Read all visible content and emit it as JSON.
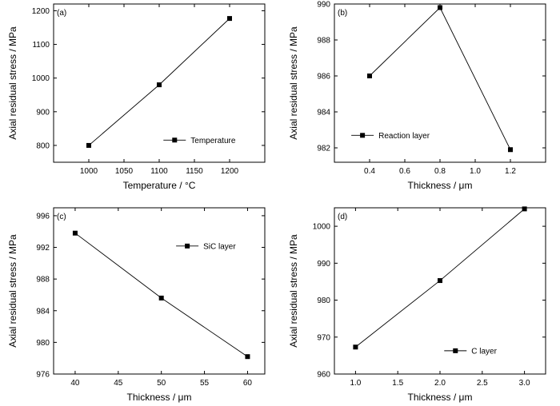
{
  "chart_data": [
    {
      "type": "line",
      "panel_label": "(a)",
      "xlabel": "Temperature / °C",
      "ylabel": "Axial residual stress / MPa",
      "xlim": [
        950,
        1250
      ],
      "ylim": [
        750,
        1220
      ],
      "xticks": [
        1000,
        1050,
        1100,
        1150,
        1200
      ],
      "yticks": [
        800,
        900,
        1000,
        1100,
        1200
      ],
      "tick_decimals": [
        0,
        0
      ],
      "legend_position": "lower-right",
      "series": [
        {
          "name": "Temperature",
          "marker": "square",
          "x": [
            1000,
            1100,
            1200
          ],
          "y": [
            800,
            980,
            1177
          ]
        }
      ]
    },
    {
      "type": "line",
      "panel_label": "(b)",
      "xlabel": "Thickness / μm",
      "ylabel": "Axial residual stress / MPa",
      "xlim": [
        0.2,
        1.4
      ],
      "ylim": [
        981.2,
        990
      ],
      "xticks": [
        0.4,
        0.6,
        0.8,
        1.0,
        1.2
      ],
      "yticks": [
        982,
        984,
        986,
        988,
        990
      ],
      "tick_decimals": [
        1,
        0
      ],
      "legend_position": "lower-left",
      "series": [
        {
          "name": "Reaction layer",
          "marker": "square",
          "x": [
            0.4,
            0.8,
            1.2
          ],
          "y": [
            986.0,
            989.8,
            981.9
          ]
        }
      ]
    },
    {
      "type": "line",
      "panel_label": "(c)",
      "xlabel": "Thickness / μm",
      "ylabel": "Axial residual stress / MPa",
      "xlim": [
        37.5,
        62
      ],
      "ylim": [
        976,
        997
      ],
      "xticks": [
        40,
        45,
        50,
        55,
        60
      ],
      "yticks": [
        976,
        980,
        984,
        988,
        992,
        996
      ],
      "tick_decimals": [
        0,
        0
      ],
      "legend_position": "upper-right",
      "series": [
        {
          "name": "SiC layer",
          "marker": "square",
          "x": [
            40,
            50,
            60
          ],
          "y": [
            993.8,
            985.6,
            978.2
          ]
        }
      ]
    },
    {
      "type": "line",
      "panel_label": "(d)",
      "xlabel": "Thickness / μm",
      "ylabel": "Axial residual stress / MPa",
      "xlim": [
        0.75,
        3.25
      ],
      "ylim": [
        960,
        1005
      ],
      "xticks": [
        1.0,
        1.5,
        2.0,
        2.5,
        3.0
      ],
      "yticks": [
        960,
        970,
        980,
        990,
        1000
      ],
      "tick_decimals": [
        1,
        0
      ],
      "legend_position": "lower-right",
      "series": [
        {
          "name": "C layer",
          "marker": "square",
          "x": [
            1.0,
            2.0,
            3.0
          ],
          "y": [
            967.3,
            985.3,
            1004.7
          ]
        }
      ]
    }
  ]
}
